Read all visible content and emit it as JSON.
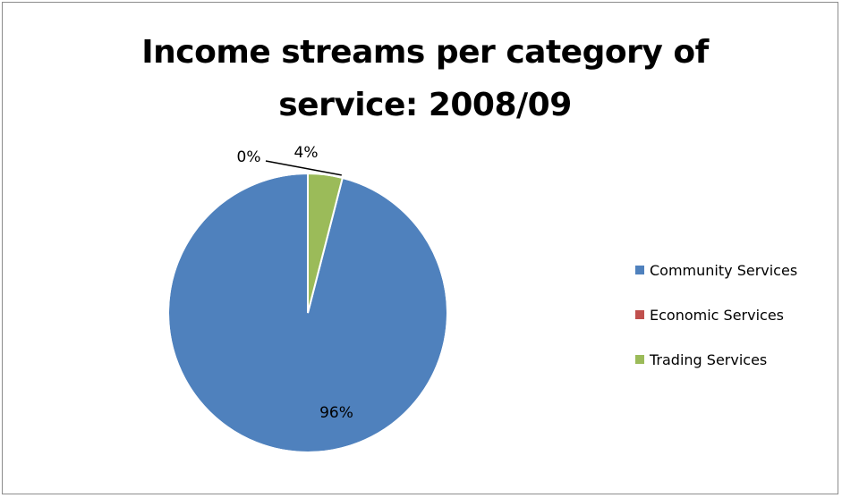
{
  "chart_data": {
    "type": "pie",
    "title_lines": [
      "Income streams per category of",
      "service: 2008/09"
    ],
    "categories": [
      "Community Services",
      "Economic Services",
      "Trading Services"
    ],
    "values": [
      96,
      0,
      4
    ],
    "data_labels": [
      "96%",
      "0%",
      "4%"
    ],
    "colors": [
      "#4f81bd",
      "#c0504d",
      "#9bbb59"
    ],
    "legend_position": "right"
  }
}
